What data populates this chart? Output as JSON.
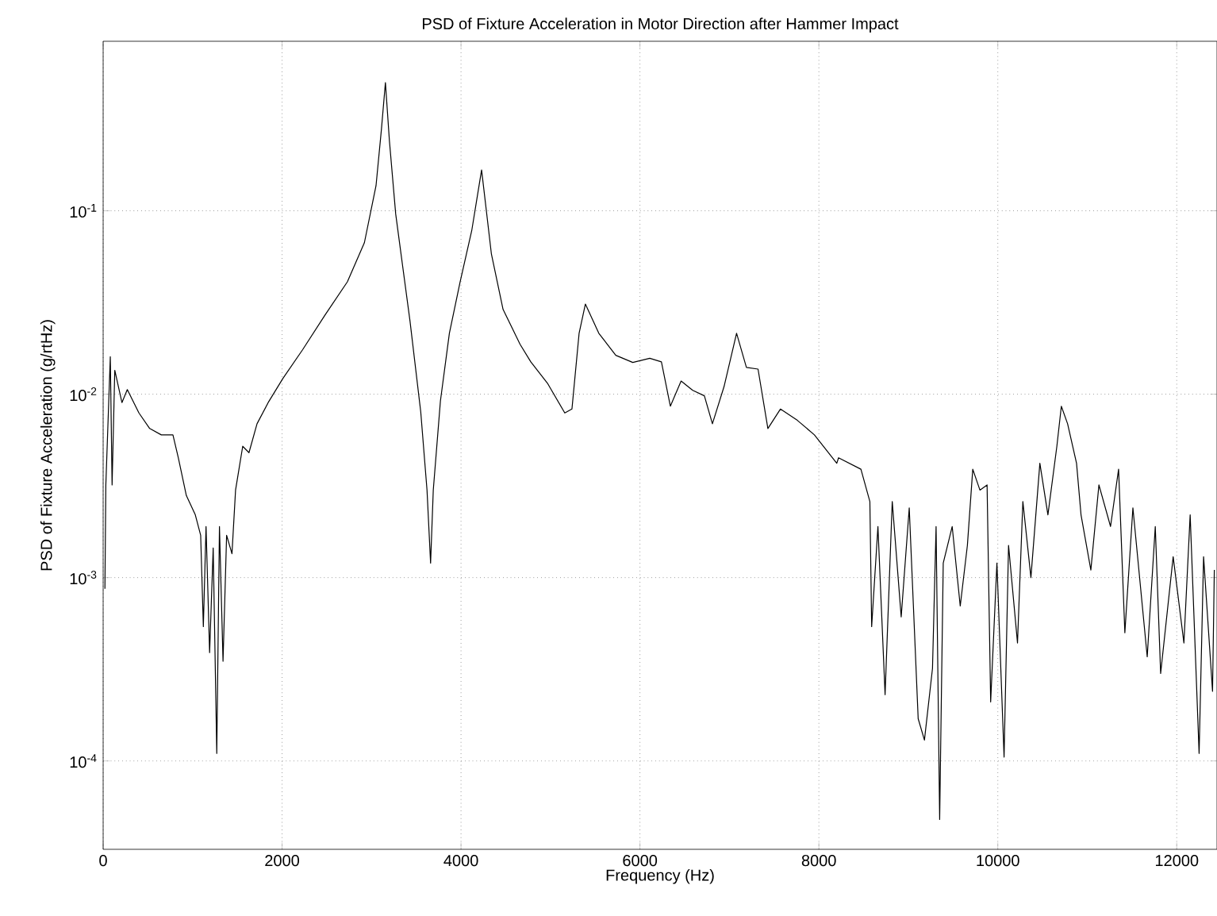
{
  "chart_data": {
    "type": "line",
    "title": "PSD of Fixture Acceleration in Motor Direction after Hammer Impact",
    "xlabel": "Frequency (Hz)",
    "ylabel": "PSD of Fixture Acceleration (g/rtHz)",
    "log": "y",
    "grid": true,
    "marker": "none",
    "line_style": "solid",
    "xlim": [
      0,
      12450
    ],
    "ylim": [
      3.3e-05,
      0.84
    ],
    "xticks": [
      0,
      2000,
      4000,
      6000,
      8000,
      10000,
      12000
    ],
    "yticks": [
      {
        "value": 0.0001,
        "label": "10$^{-4}$"
      },
      {
        "value": 0.001,
        "label": "10$^{-3}$"
      },
      {
        "value": 0.01,
        "label": "10$^{-2}$"
      },
      {
        "value": 0.1,
        "label": "10$^{-1}$"
      }
    ],
    "series": [
      {
        "color": "#000000",
        "x": [
          20,
          30,
          80,
          100,
          130,
          210,
          270,
          400,
          520,
          650,
          780,
          840,
          930,
          1030,
          1090,
          1120,
          1150,
          1190,
          1230,
          1270,
          1300,
          1340,
          1380,
          1440,
          1480,
          1560,
          1630,
          1720,
          1850,
          2010,
          2230,
          2480,
          2730,
          2920,
          3050,
          3110,
          3155,
          3200,
          3270,
          3430,
          3550,
          3620,
          3660,
          3690,
          3770,
          3870,
          3990,
          4120,
          4230,
          4340,
          4470,
          4660,
          4780,
          4970,
          5160,
          5240,
          5320,
          5390,
          5540,
          5730,
          5920,
          6110,
          6240,
          6340,
          6460,
          6590,
          6720,
          6810,
          6940,
          7080,
          7190,
          7320,
          7430,
          7570,
          7760,
          7950,
          8200,
          8220,
          8470,
          8570,
          8590,
          8660,
          8740,
          8820,
          8920,
          9010,
          9110,
          9180,
          9270,
          9310,
          9350,
          9390,
          9490,
          9580,
          9660,
          9720,
          9800,
          9880,
          9920,
          9990,
          10070,
          10120,
          10220,
          10280,
          10370,
          10470,
          10560,
          10660,
          10710,
          10780,
          10880,
          10930,
          11040,
          11130,
          11260,
          11350,
          11420,
          11510,
          11670,
          11760,
          11820,
          11960,
          12080,
          12150,
          12250,
          12300,
          12400,
          12420
        ],
        "values": [
          0.00087,
          0.0032,
          0.016,
          0.0032,
          0.0135,
          0.009,
          0.0106,
          0.0079,
          0.0065,
          0.006,
          0.006,
          0.0045,
          0.0028,
          0.0022,
          0.0017,
          0.00054,
          0.0019,
          0.00039,
          0.00145,
          0.00011,
          0.0019,
          0.00035,
          0.0017,
          0.00135,
          0.003,
          0.0052,
          0.0048,
          0.0069,
          0.0091,
          0.0122,
          0.0175,
          0.027,
          0.041,
          0.067,
          0.137,
          0.277,
          0.5,
          0.24,
          0.096,
          0.025,
          0.008,
          0.003,
          0.0012,
          0.003,
          0.0092,
          0.0215,
          0.041,
          0.078,
          0.167,
          0.058,
          0.029,
          0.0187,
          0.015,
          0.0114,
          0.0079,
          0.0083,
          0.0215,
          0.031,
          0.0215,
          0.0163,
          0.0149,
          0.0157,
          0.015,
          0.0086,
          0.0118,
          0.0105,
          0.0098,
          0.0069,
          0.011,
          0.0215,
          0.014,
          0.0137,
          0.0065,
          0.0083,
          0.0072,
          0.006,
          0.0042,
          0.0045,
          0.0039,
          0.0026,
          0.00054,
          0.0019,
          0.00023,
          0.0026,
          0.00061,
          0.0024,
          0.00017,
          0.00013,
          0.00032,
          0.0019,
          4.8e-05,
          0.0012,
          0.0019,
          0.0007,
          0.0015,
          0.0039,
          0.003,
          0.0032,
          0.00021,
          0.0012,
          0.000105,
          0.0015,
          0.00044,
          0.0026,
          0.001,
          0.0042,
          0.0022,
          0.0052,
          0.0086,
          0.0069,
          0.0042,
          0.0022,
          0.0011,
          0.0032,
          0.0019,
          0.0039,
          0.0005,
          0.0024,
          0.00037,
          0.0019,
          0.0003,
          0.0013,
          0.00044,
          0.0022,
          0.00011,
          0.0013,
          0.00024,
          0.0011
        ]
      }
    ]
  }
}
